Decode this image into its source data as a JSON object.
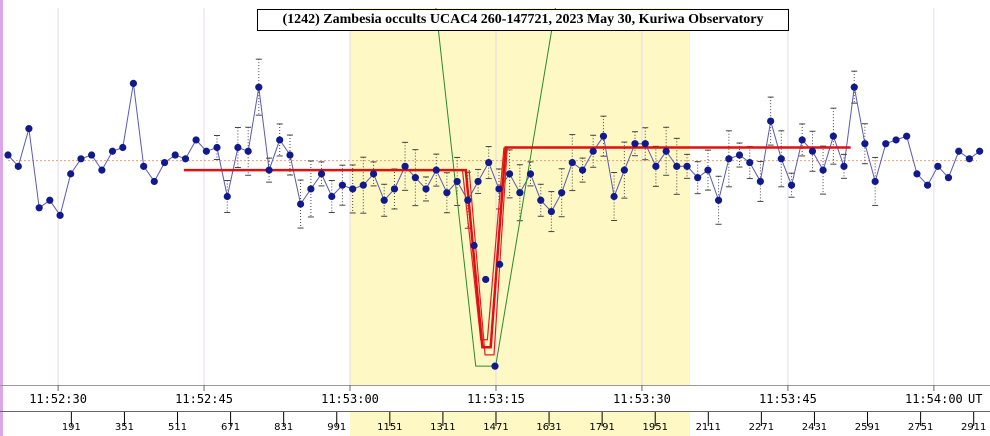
{
  "chart_data": {
    "type": "line",
    "title": "(1242) Zambesia occults UCAC4 260-147721, 2023 May 30, Kuriwa Observatory",
    "x_unit_label": "UT",
    "xlim": [
      0,
      2921
    ],
    "ylim": [
      0,
      100
    ],
    "time_ticks": [
      {
        "label": "11:52:30",
        "x": 151
      },
      {
        "label": "11:52:45",
        "x": 591
      },
      {
        "label": "11:53:00",
        "x": 1031
      },
      {
        "label": "11:53:15",
        "x": 1471
      },
      {
        "label": "11:53:30",
        "x": 1911
      },
      {
        "label": "11:53:45",
        "x": 2351
      },
      {
        "label": "11:54:00",
        "x": 2791
      }
    ],
    "frame_ticks": [
      191,
      351,
      511,
      671,
      831,
      991,
      1151,
      1311,
      1471,
      1631,
      1791,
      1951,
      2111,
      2271,
      2431,
      2591,
      2751,
      2911
    ],
    "analysis_region": [
      1031,
      2056
    ],
    "baseline_level": 59.5,
    "observations": [
      [
        0,
        61
      ],
      [
        31,
        58
      ],
      [
        63,
        68
      ],
      [
        94,
        47
      ],
      [
        126,
        49
      ],
      [
        157,
        45
      ],
      [
        189,
        56
      ],
      [
        220,
        60
      ],
      [
        252,
        61
      ],
      [
        283,
        57
      ],
      [
        315,
        62
      ],
      [
        346,
        63
      ],
      [
        378,
        80
      ],
      [
        409,
        58
      ],
      [
        441,
        54
      ],
      [
        472,
        59
      ],
      [
        504,
        61
      ],
      [
        535,
        60
      ],
      [
        567,
        65
      ],
      [
        598,
        62
      ],
      [
        630,
        63
      ],
      [
        661,
        50
      ],
      [
        693,
        63
      ],
      [
        724,
        62
      ],
      [
        756,
        79
      ],
      [
        787,
        57
      ],
      [
        819,
        65
      ],
      [
        850,
        61
      ],
      [
        882,
        48
      ],
      [
        913,
        52
      ],
      [
        945,
        56
      ],
      [
        976,
        50
      ],
      [
        1008,
        53
      ],
      [
        1039,
        52
      ],
      [
        1071,
        53
      ],
      [
        1102,
        56
      ],
      [
        1134,
        49
      ],
      [
        1165,
        52
      ],
      [
        1197,
        58
      ],
      [
        1228,
        55
      ],
      [
        1260,
        52
      ],
      [
        1291,
        57
      ],
      [
        1323,
        51
      ],
      [
        1354,
        54
      ],
      [
        1386,
        49
      ],
      [
        1417,
        54
      ],
      [
        1449,
        59
      ],
      [
        1480,
        52
      ],
      [
        1512,
        56
      ],
      [
        1543,
        51
      ],
      [
        1575,
        56
      ],
      [
        1606,
        49
      ],
      [
        1638,
        46
      ],
      [
        1669,
        51
      ],
      [
        1701,
        59
      ],
      [
        1732,
        57
      ],
      [
        1764,
        62
      ],
      [
        1795,
        66
      ],
      [
        1827,
        50
      ],
      [
        1858,
        57
      ],
      [
        1890,
        64
      ],
      [
        1921,
        64
      ],
      [
        1953,
        58
      ],
      [
        1984,
        62
      ],
      [
        2016,
        58
      ],
      [
        2047,
        58
      ],
      [
        2079,
        55
      ],
      [
        2110,
        57
      ],
      [
        2142,
        49
      ],
      [
        2173,
        60
      ],
      [
        2205,
        61
      ],
      [
        2236,
        59
      ],
      [
        2268,
        54
      ],
      [
        2299,
        70
      ],
      [
        2331,
        60
      ],
      [
        2362,
        53
      ],
      [
        2394,
        65
      ],
      [
        2425,
        62
      ],
      [
        2457,
        57
      ],
      [
        2488,
        66
      ],
      [
        2520,
        58
      ],
      [
        2551,
        79
      ],
      [
        2583,
        64
      ],
      [
        2614,
        54
      ],
      [
        2646,
        64
      ],
      [
        2677,
        65
      ],
      [
        2709,
        66
      ],
      [
        2740,
        56
      ],
      [
        2772,
        53
      ],
      [
        2803,
        58
      ],
      [
        2835,
        55
      ],
      [
        2866,
        62
      ],
      [
        2898,
        60
      ],
      [
        2929,
        62
      ]
    ],
    "event_points": [
      [
        1405,
        37
      ],
      [
        1440,
        28
      ],
      [
        1468,
        5
      ],
      [
        1482,
        32
      ]
    ],
    "model_fit": [
      [
        530,
        57
      ],
      [
        1380,
        57
      ],
      [
        1430,
        10
      ],
      [
        1455,
        10
      ],
      [
        1500,
        63
      ],
      [
        2540,
        63
      ]
    ],
    "envelope_upper": [
      [
        1370,
        57
      ],
      [
        1425,
        12
      ],
      [
        1445,
        12
      ],
      [
        1495,
        63
      ]
    ],
    "envelope_lower": [
      [
        1390,
        57
      ],
      [
        1438,
        8
      ],
      [
        1465,
        8
      ],
      [
        1505,
        63
      ]
    ],
    "geometric_fit": [
      [
        1290,
        100
      ],
      [
        1410,
        5
      ],
      [
        1470,
        5
      ],
      [
        1650,
        100
      ]
    ]
  }
}
